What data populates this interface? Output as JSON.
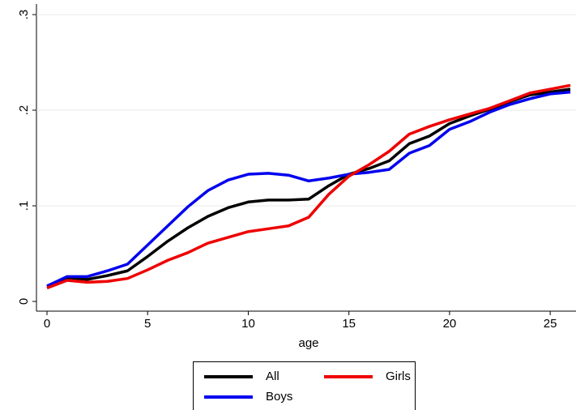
{
  "chart_data": {
    "type": "line",
    "xlabel": "age",
    "x": [
      0,
      1,
      2,
      3,
      4,
      5,
      6,
      7,
      8,
      9,
      10,
      11,
      12,
      13,
      14,
      15,
      16,
      17,
      18,
      19,
      20,
      21,
      22,
      23,
      24,
      25,
      26
    ],
    "series": [
      {
        "name": "All",
        "color": "#000000",
        "values": [
          0.016,
          0.025,
          0.023,
          0.027,
          0.032,
          0.047,
          0.063,
          0.077,
          0.089,
          0.098,
          0.104,
          0.106,
          0.106,
          0.107,
          0.121,
          0.133,
          0.139,
          0.147,
          0.165,
          0.173,
          0.186,
          0.194,
          0.201,
          0.209,
          0.216,
          0.219,
          0.222
        ]
      },
      {
        "name": "Girls",
        "color": "#ee0000",
        "values": [
          0.014,
          0.022,
          0.02,
          0.021,
          0.024,
          0.033,
          0.043,
          0.051,
          0.061,
          0.067,
          0.073,
          0.076,
          0.079,
          0.088,
          0.112,
          0.131,
          0.143,
          0.157,
          0.175,
          0.183,
          0.19,
          0.196,
          0.202,
          0.21,
          0.218,
          0.222,
          0.226
        ]
      },
      {
        "name": "Boys",
        "color": "#0000ee",
        "values": [
          0.016,
          0.026,
          0.026,
          0.032,
          0.039,
          0.059,
          0.079,
          0.099,
          0.116,
          0.127,
          0.133,
          0.134,
          0.132,
          0.126,
          0.129,
          0.133,
          0.135,
          0.138,
          0.155,
          0.163,
          0.18,
          0.188,
          0.198,
          0.206,
          0.212,
          0.217,
          0.219
        ]
      }
    ],
    "xlim": [
      0,
      26
    ],
    "xticks": [
      0,
      5,
      10,
      15,
      20,
      25
    ],
    "ylim": [
      0,
      0.3
    ],
    "yticks": [
      0,
      {
        "value": 0.1,
        "label": ".1"
      },
      {
        "value": 0.2,
        "label": ".2"
      },
      {
        "value": 0.3,
        "label": ".3"
      }
    ],
    "grid": true
  }
}
